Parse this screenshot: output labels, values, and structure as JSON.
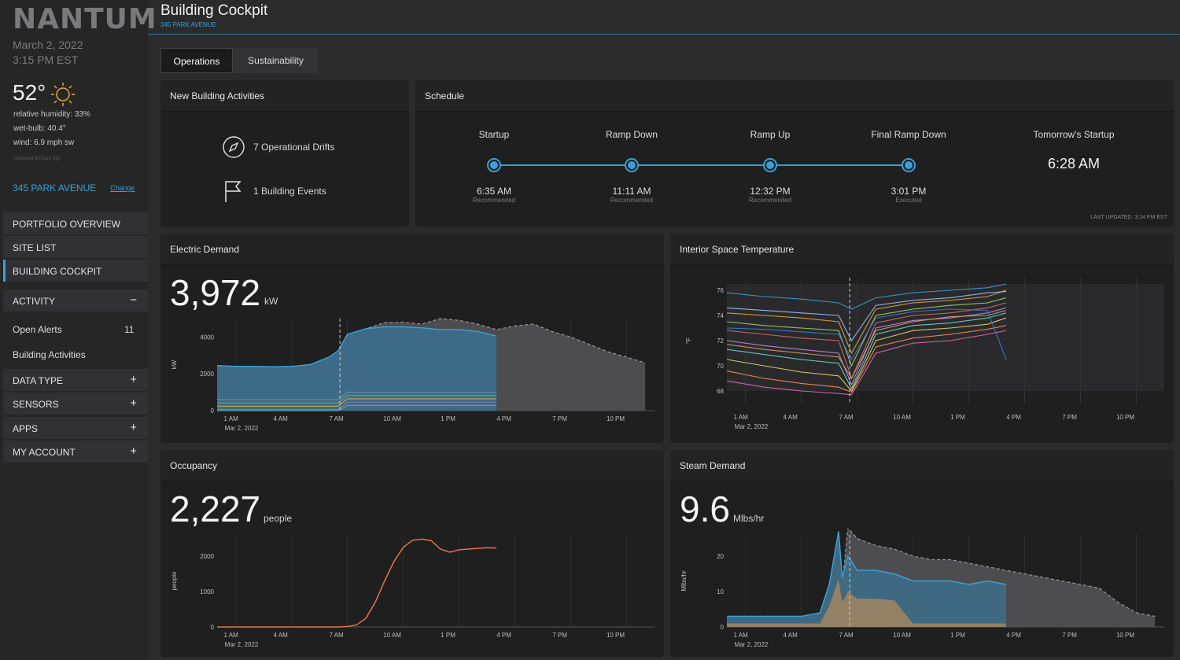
{
  "app": {
    "logo": "NANTUM",
    "title": "Building Cockpit",
    "address": "345 PARK AVENUE"
  },
  "sidebar": {
    "date": "March 2, 2022",
    "time": "3:15 PM EST",
    "temperature": "52°",
    "humidity": "relative humidity: 33%",
    "wetbulb": "wet-bulb: 40.4°",
    "wind": "wind: 6.9 mph sw",
    "powered": "*powered by Dark Sky",
    "building": "345 PARK AVENUE",
    "change": "Change",
    "nav": {
      "portfolio": "PORTFOLIO OVERVIEW",
      "sitelist": "SITE LIST",
      "cockpit": "BUILDING COCKPIT",
      "activity": "ACTIVITY",
      "datatype": "DATA TYPE",
      "sensors": "SENSORS",
      "apps": "APPS",
      "account": "MY ACCOUNT"
    },
    "minus": "−",
    "plus": "+",
    "open_alerts": "Open Alerts",
    "open_alerts_count": "11",
    "building_activities": "Building Activities"
  },
  "tabs": {
    "operations": "Operations",
    "sustainability": "Sustainability"
  },
  "activities": {
    "title": "New Building Activities",
    "drifts": "7 Operational Drifts",
    "events": "1 Building Events"
  },
  "schedule": {
    "title": "Schedule",
    "milestones": [
      {
        "label": "Startup",
        "time": "6:35 AM",
        "status": "Recommended"
      },
      {
        "label": "Ramp Down",
        "time": "11:11 AM",
        "status": "Recommended"
      },
      {
        "label": "Ramp Up",
        "time": "12:32 PM",
        "status": "Recommended"
      },
      {
        "label": "Final Ramp Down",
        "time": "3:01 PM",
        "status": "Executed"
      }
    ],
    "tomorrow_label": "Tomorrow's Startup",
    "tomorrow_time": "6:28 AM",
    "updated": "LAST UPDATED: 3:14 PM EST"
  },
  "xticks": [
    "1 AM",
    "4 AM",
    "7 AM",
    "10 AM",
    "1 PM",
    "4 PM",
    "7 PM",
    "10 PM"
  ],
  "xdate": "Mar 2, 2022",
  "colors": {
    "accent": "#3aa0d4",
    "panel": "#1f1f20",
    "forecast": "#4d4d4f"
  },
  "electric": {
    "title": "Electric Demand",
    "value": "3,972",
    "unit": "kW",
    "ylabel": "kW",
    "yticks": [
      "4000",
      "2000",
      "0"
    ]
  },
  "interior": {
    "title": "Interior Space Temperature",
    "ylabel": "°F",
    "yticks": [
      "76",
      "74",
      "72",
      "70",
      "68"
    ]
  },
  "occupancy": {
    "title": "Occupancy",
    "value": "2,227",
    "unit": "people",
    "ylabel": "people",
    "yticks": [
      "2000",
      "1000",
      "0"
    ]
  },
  "steam": {
    "title": "Steam Demand",
    "value": "9.6",
    "unit": "Mlbs/hr",
    "ylabel": "Mlbs/hr",
    "yticks": [
      "20",
      "10",
      "0"
    ]
  },
  "chart_data": [
    {
      "type": "area",
      "title": "Electric Demand",
      "ylabel": "kW",
      "ylim": [
        0,
        5000
      ],
      "x_hours": [
        0,
        1,
        2,
        3,
        4,
        5,
        6,
        6.5,
        7,
        8,
        9,
        10,
        11,
        12,
        13,
        14,
        15,
        16,
        17,
        18,
        19,
        20,
        21,
        22,
        23
      ],
      "series": [
        {
          "values": [
            2450,
            2400,
            2400,
            2380,
            2400,
            2500,
            2900,
            3250,
            4150,
            4450,
            4550,
            4550,
            4500,
            4400,
            4400,
            4300,
            4050
          ]
        },
        {
          "values": [
            5,
            5,
            5,
            5,
            5,
            5,
            5,
            5,
            5,
            5,
            4780,
            4800,
            4700,
            5000,
            4900,
            4700,
            4400,
            4600,
            4700,
            4300,
            4000,
            3600,
            3200,
            2900,
            2600
          ]
        }
      ]
    },
    {
      "type": "line",
      "title": "Interior Space Temperature",
      "ylabel": "°F",
      "ylim": [
        67,
        77
      ],
      "x_hours": [
        0,
        2,
        4,
        6,
        6.7,
        8,
        10,
        12,
        14,
        15
      ],
      "series": [
        {
          "values": [
            75.8,
            75.5,
            75.3,
            75,
            74.5,
            75.4,
            75.8,
            76,
            76.2,
            76.5
          ]
        },
        {
          "values": [
            74.2,
            74,
            73.8,
            73.5,
            71,
            74.5,
            75,
            75.2,
            75.5,
            76
          ]
        },
        {
          "values": [
            73.5,
            73.2,
            73,
            72.8,
            70,
            74,
            74.5,
            74.8,
            75,
            75.4
          ]
        },
        {
          "values": [
            72.8,
            72.5,
            72.2,
            72,
            69,
            73.4,
            74,
            74.2,
            74.6,
            75
          ]
        },
        {
          "values": [
            72,
            71.6,
            71.3,
            71,
            68.5,
            73,
            73.6,
            73.8,
            74.2,
            74.6
          ]
        },
        {
          "values": [
            71.3,
            70.9,
            70.5,
            70.2,
            68.2,
            72.5,
            73.2,
            73.4,
            73.8,
            74.2
          ]
        },
        {
          "values": [
            70.5,
            70,
            69.5,
            69.2,
            68,
            72,
            72.8,
            73,
            73.3,
            73.8
          ]
        },
        {
          "values": [
            69.6,
            69,
            68.6,
            68.3,
            67.9,
            71.5,
            72.2,
            72.5,
            72.9,
            73.2
          ]
        },
        {
          "values": [
            74.6,
            74.4,
            74.2,
            74,
            72,
            74.8,
            75.2,
            75.4,
            75.8,
            75.9
          ]
        },
        {
          "values": [
            71.7,
            71.3,
            71,
            70.7,
            69,
            72.8,
            73.5,
            73.9,
            74,
            74.4
          ]
        },
        {
          "values": [
            73,
            72.9,
            72.7,
            72.5,
            70.5,
            73.8,
            74.3,
            74.5,
            74.4,
            70.5
          ]
        },
        {
          "values": [
            68.8,
            68.3,
            68,
            67.8,
            67.7,
            71,
            71.8,
            72,
            72.5,
            72.8
          ]
        }
      ]
    },
    {
      "type": "line",
      "title": "Occupancy",
      "ylabel": "people",
      "ylim": [
        0,
        2600
      ],
      "x_hours": [
        0,
        4,
        6.5,
        7,
        7.5,
        8,
        8.5,
        9,
        9.5,
        10,
        10.5,
        11,
        11.5,
        12,
        12.5,
        13,
        13.5,
        14,
        14.5,
        15
      ],
      "values": [
        0,
        0,
        0,
        10,
        60,
        250,
        700,
        1300,
        1850,
        2250,
        2450,
        2480,
        2440,
        2200,
        2110,
        2180,
        2200,
        2220,
        2240,
        2227
      ]
    },
    {
      "type": "area",
      "title": "Steam Demand",
      "ylabel": "Mlbs/hr",
      "ylim": [
        0,
        26
      ],
      "x_hours": [
        0,
        2,
        4,
        5,
        5.5,
        6,
        6.2,
        6.5,
        7,
        8,
        9,
        10,
        11,
        12,
        13,
        14,
        15,
        16,
        17,
        18,
        19,
        20,
        21,
        22,
        23
      ],
      "series": [
        {
          "values": [
            3,
            3,
            3,
            4,
            12,
            27,
            14,
            20,
            16,
            16,
            15,
            13,
            13,
            13,
            12,
            13,
            12
          ]
        },
        {
          "values": [
            3,
            3,
            3,
            4,
            12,
            24,
            12,
            28,
            25,
            23,
            22,
            20,
            19,
            19,
            18,
            17,
            16,
            15,
            14,
            13,
            12,
            11,
            7,
            4,
            3
          ]
        }
      ]
    }
  ]
}
